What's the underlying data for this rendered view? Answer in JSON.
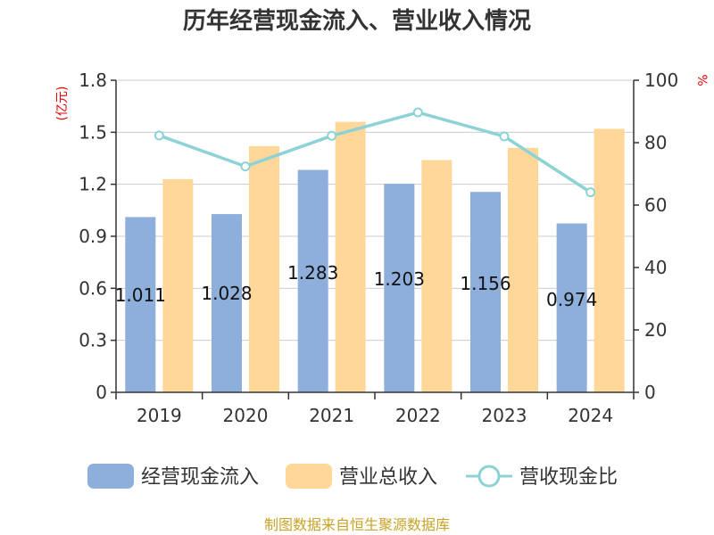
{
  "chart_data": {
    "type": "bar",
    "title": "历年经营现金流入、营业收入情况",
    "categories": [
      "2019",
      "2020",
      "2021",
      "2022",
      "2023",
      "2024"
    ],
    "series": [
      {
        "name": "经营现金流入",
        "type": "bar",
        "axis": "left",
        "color": "#8eaedb",
        "values": [
          1.011,
          1.028,
          1.283,
          1.203,
          1.156,
          0.974
        ],
        "labels": [
          "1.011",
          "1.028",
          "1.283",
          "1.203",
          "1.156",
          "0.974"
        ]
      },
      {
        "name": "营业总收入",
        "type": "bar",
        "axis": "left",
        "color": "#ffd899",
        "values": [
          1.23,
          1.42,
          1.56,
          1.34,
          1.41,
          1.52
        ]
      },
      {
        "name": "营收现金比",
        "type": "line",
        "axis": "right",
        "color": "#8dd3d6",
        "values": [
          82.3,
          72.4,
          82.2,
          89.7,
          82.0,
          64.1
        ]
      }
    ],
    "y_left": {
      "unit": "(亿元)",
      "min": 0,
      "max": 1.8,
      "ticks": [
        0,
        0.3,
        0.6,
        0.9,
        1.2,
        1.5,
        1.8
      ],
      "tick_labels": [
        "0",
        "0.3",
        "0.6",
        "0.9",
        "1.2",
        "1.5",
        "1.8"
      ]
    },
    "y_right": {
      "unit": "%",
      "min": 0,
      "max": 100,
      "ticks": [
        0,
        20,
        40,
        60,
        80,
        100
      ],
      "tick_labels": [
        "0",
        "20",
        "40",
        "60",
        "80",
        "100"
      ]
    },
    "grid": true,
    "legend": "bottom"
  },
  "footer": {
    "source": "制图数据来自恒生聚源数据库"
  }
}
